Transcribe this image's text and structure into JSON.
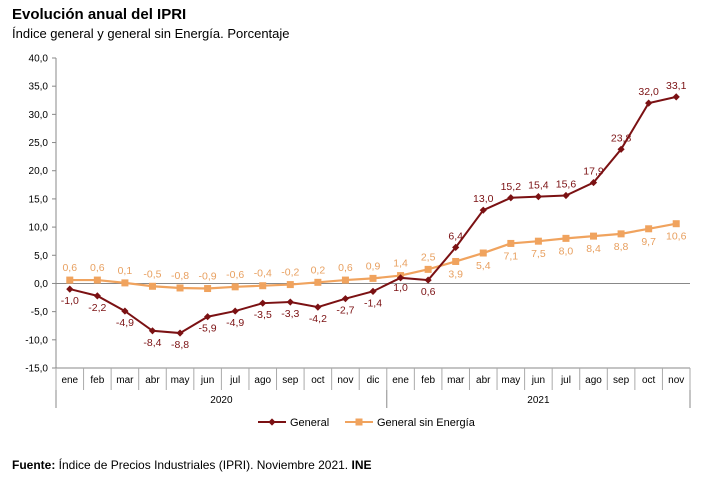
{
  "header": {
    "title": "Evolución anual del IPRI",
    "subtitle": "Índice general y general sin Energía. Porcentaje"
  },
  "footer": {
    "source_label": "Fuente:",
    "source_text": " Índice de Precios Industriales (IPRI). Noviembre 2021. ",
    "source_org": "INE"
  },
  "colors": {
    "general": "#7b1113",
    "sin_energia": "#f0a35e",
    "general_label": "#7b1113",
    "sin_energia_label": "#e8a060"
  },
  "chart_data": {
    "type": "line",
    "ylim": [
      -15,
      40
    ],
    "yticks": [
      "-15,0",
      "-10,0",
      "-5,0",
      "0,0",
      "5,0",
      "10,0",
      "15,0",
      "20,0",
      "25,0",
      "30,0",
      "35,0",
      "40,0"
    ],
    "categories": [
      "ene",
      "feb",
      "mar",
      "abr",
      "may",
      "jun",
      "jul",
      "ago",
      "sep",
      "oct",
      "nov",
      "dic",
      "ene",
      "feb",
      "mar",
      "abr",
      "may",
      "jun",
      "jul",
      "ago",
      "sep",
      "oct",
      "nov"
    ],
    "years": [
      {
        "label": "2020",
        "start": 0,
        "count": 12
      },
      {
        "label": "2021",
        "start": 12,
        "count": 11
      }
    ],
    "legend_position": "bottom",
    "grid": false,
    "series": [
      {
        "name": "General",
        "marker": "diamond",
        "values": [
          -1.0,
          -2.2,
          -4.9,
          -8.4,
          -8.8,
          -5.9,
          -4.9,
          -3.5,
          -3.3,
          -4.2,
          -2.7,
          -1.4,
          1.0,
          0.6,
          6.4,
          13.0,
          15.2,
          15.4,
          15.6,
          17.9,
          23.8,
          32.0,
          33.1
        ],
        "labels": [
          "-1,0",
          "-2,2",
          "-4,9",
          "-8,4",
          "-8,8",
          "-5,9",
          "-4,9",
          "-3,5",
          "-3,3",
          "-4,2",
          "-2,7",
          "-1,4",
          "1,0",
          "0,6",
          "6,4",
          "13,0",
          "15,2",
          "15,4",
          "15,6",
          "17,9",
          "23,8",
          "32,0",
          "33,1"
        ]
      },
      {
        "name": "General sin Energía",
        "marker": "square",
        "values": [
          0.6,
          0.6,
          0.1,
          -0.5,
          -0.8,
          -0.9,
          -0.6,
          -0.4,
          -0.2,
          0.2,
          0.6,
          0.9,
          1.4,
          2.5,
          3.9,
          5.4,
          7.1,
          7.5,
          8.0,
          8.4,
          8.8,
          9.7,
          10.6
        ],
        "labels": [
          "0,6",
          "0,6",
          "0,1",
          "-0,5",
          "-0,8",
          "-0,9",
          "-0,6",
          "-0,4",
          "-0,2",
          "0,2",
          "0,6",
          "0,9",
          "1,4",
          "2,5",
          "3,9",
          "5,4",
          "7,1",
          "7,5",
          "8,0",
          "8,4",
          "8,8",
          "9,7",
          "10,6"
        ]
      }
    ]
  }
}
